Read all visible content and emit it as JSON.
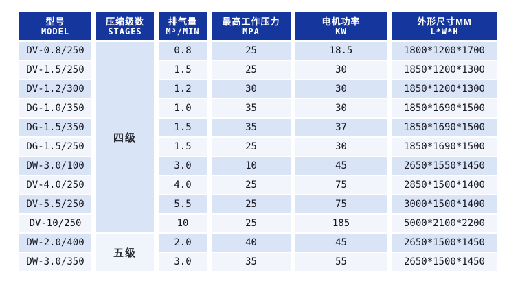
{
  "colors": {
    "page_bg": "#ffffff",
    "header_bg": "#15379d",
    "header_text": "#ffffff",
    "row_alt_blue": "#d9e4f6",
    "row_alt_white": "#f2f6fc",
    "stage4_bg": "#d9e4f6",
    "stage5_bg": "#f0f5fc",
    "data_text": "#15151f"
  },
  "table": {
    "headers": [
      {
        "key": "model",
        "zh": "型号",
        "en": "MODEL"
      },
      {
        "key": "stages",
        "zh": "压缩级数",
        "en": "STAGES"
      },
      {
        "key": "displacement",
        "zh": "排气量",
        "en": "M³/MIN"
      },
      {
        "key": "pressure",
        "zh": "最高工作压力",
        "en": "MPA"
      },
      {
        "key": "power",
        "zh": "电机功率",
        "en": "KW"
      },
      {
        "key": "dimensions",
        "zh": "外形尺寸MM",
        "en": "L*W*H"
      }
    ],
    "stage_groups": [
      {
        "label": "四级",
        "rows": 10
      },
      {
        "label": "五级",
        "rows": 2
      }
    ],
    "rows": [
      {
        "model": "DV-0.8/250",
        "displacement": "0.8",
        "pressure": "25",
        "power": "18.5",
        "dimensions": "1800*1200*1700"
      },
      {
        "model": "DV-1.5/250",
        "displacement": "1.5",
        "pressure": "25",
        "power": "30",
        "dimensions": "1850*1200*1300"
      },
      {
        "model": "DV-1.2/300",
        "displacement": "1.2",
        "pressure": "30",
        "power": "30",
        "dimensions": "1850*1200*1300"
      },
      {
        "model": "DG-1.0/350",
        "displacement": "1.0",
        "pressure": "35",
        "power": "30",
        "dimensions": "1850*1690*1500"
      },
      {
        "model": "DG-1.5/350",
        "displacement": "1.5",
        "pressure": "35",
        "power": "37",
        "dimensions": "1850*1690*1500"
      },
      {
        "model": "DG-1.5/250",
        "displacement": "1.5",
        "pressure": "25",
        "power": "30",
        "dimensions": "1850*1690*1500"
      },
      {
        "model": "DW-3.0/100",
        "displacement": "3.0",
        "pressure": "10",
        "power": "45",
        "dimensions": "2650*1550*1450"
      },
      {
        "model": "DV-4.0/250",
        "displacement": "4.0",
        "pressure": "25",
        "power": "75",
        "dimensions": "2850*1500*1400"
      },
      {
        "model": "DV-5.5/250",
        "displacement": "5.5",
        "pressure": "25",
        "power": "75",
        "dimensions": "3000*1500*1400"
      },
      {
        "model": "DV-10/250",
        "displacement": "10",
        "pressure": "25",
        "power": "185",
        "dimensions": "5000*2100*2200"
      },
      {
        "model": "DW-2.0/400",
        "displacement": "2.0",
        "pressure": "40",
        "power": "45",
        "dimensions": "2650*1500*1450"
      },
      {
        "model": "DW-3.0/350",
        "displacement": "3.0",
        "pressure": "35",
        "power": "55",
        "dimensions": "2650*1500*1450"
      }
    ]
  }
}
